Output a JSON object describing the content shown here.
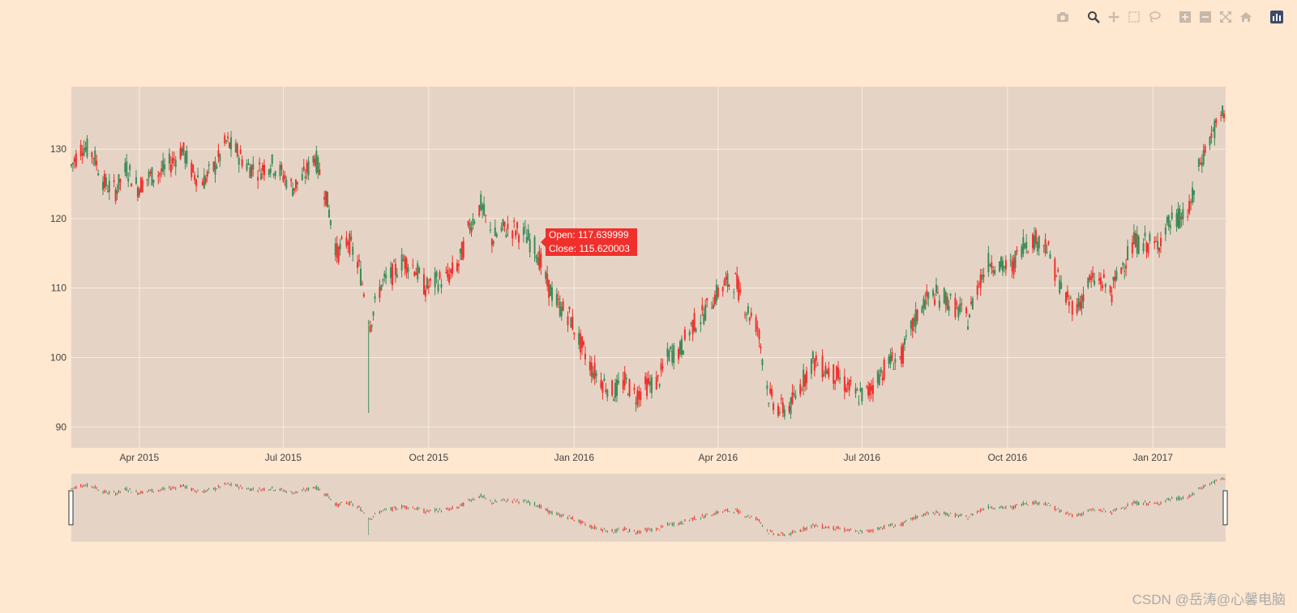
{
  "modebar": {
    "icons": [
      "camera-icon",
      "zoom-icon",
      "pan-icon",
      "box-select-icon",
      "lasso-icon",
      "zoom-in-icon",
      "zoom-out-icon",
      "autoscale-icon",
      "home-icon",
      "plotly-logo-icon"
    ]
  },
  "colors": {
    "background": "#ffe7d0",
    "plot_bg": "#e5d4c6",
    "increasing": "#3d8b57",
    "decreasing": "#f0302c",
    "grid": "#f5ecdf"
  },
  "hover": {
    "open_label": "Open: 117.639999",
    "close_label": "Close: 115.620003"
  },
  "watermark": "CSDN @岳涛@心馨电脑",
  "chart_data": {
    "type": "candlestick",
    "x_range": [
      "2015-02-17",
      "2017-02-16"
    ],
    "ylim": [
      87,
      139
    ],
    "yticks": [
      90,
      100,
      110,
      120,
      130
    ],
    "xticks": [
      {
        "label": "Apr 2015",
        "date": "2015-04-01"
      },
      {
        "label": "Jul 2015",
        "date": "2015-07-01"
      },
      {
        "label": "Oct 2015",
        "date": "2015-10-01"
      },
      {
        "label": "Jan 2016",
        "date": "2016-01-01"
      },
      {
        "label": "Apr 2016",
        "date": "2016-04-01"
      },
      {
        "label": "Jul 2016",
        "date": "2016-07-01"
      },
      {
        "label": "Oct 2016",
        "date": "2016-10-01"
      },
      {
        "label": "Jan 2017",
        "date": "2017-01-01"
      }
    ],
    "rangeslider": true,
    "price_path": [
      [
        "2015-02-17",
        127.6
      ],
      [
        "2015-02-24",
        130.5
      ],
      [
        "2015-03-03",
        129.2
      ],
      [
        "2015-03-10",
        125.0
      ],
      [
        "2015-03-17",
        124.0
      ],
      [
        "2015-03-24",
        127.3
      ],
      [
        "2015-03-31",
        124.5
      ],
      [
        "2015-04-07",
        126.0
      ],
      [
        "2015-04-14",
        126.5
      ],
      [
        "2015-04-21",
        128.0
      ],
      [
        "2015-04-28",
        130.0
      ],
      [
        "2015-05-05",
        126.5
      ],
      [
        "2015-05-12",
        125.5
      ],
      [
        "2015-05-19",
        127.5
      ],
      [
        "2015-05-26",
        131.0
      ],
      [
        "2015-06-02",
        129.5
      ],
      [
        "2015-06-09",
        127.5
      ],
      [
        "2015-06-16",
        127.0
      ],
      [
        "2015-06-23",
        128.0
      ],
      [
        "2015-06-30",
        126.5
      ],
      [
        "2015-07-07",
        124.5
      ],
      [
        "2015-07-14",
        126.0
      ],
      [
        "2015-07-21",
        129.0
      ],
      [
        "2015-07-28",
        123.5
      ],
      [
        "2015-08-04",
        115.0
      ],
      [
        "2015-08-11",
        117.0
      ],
      [
        "2015-08-18",
        113.0
      ],
      [
        "2015-08-25",
        105.0
      ],
      [
        "2015-09-01",
        110.5
      ],
      [
        "2015-09-08",
        112.0
      ],
      [
        "2015-09-15",
        114.0
      ],
      [
        "2015-09-22",
        113.0
      ],
      [
        "2015-09-29",
        110.0
      ],
      [
        "2015-10-06",
        111.0
      ],
      [
        "2015-10-13",
        111.5
      ],
      [
        "2015-10-20",
        113.5
      ],
      [
        "2015-10-27",
        119.0
      ],
      [
        "2015-11-03",
        122.0
      ],
      [
        "2015-11-10",
        117.0
      ],
      [
        "2015-11-17",
        118.5
      ],
      [
        "2015-11-24",
        118.5
      ],
      [
        "2015-12-01",
        117.6
      ],
      [
        "2015-12-08",
        115.6
      ],
      [
        "2015-12-15",
        110.5
      ],
      [
        "2015-12-22",
        107.5
      ],
      [
        "2015-12-29",
        106.0
      ],
      [
        "2016-01-05",
        102.0
      ],
      [
        "2016-01-12",
        98.5
      ],
      [
        "2016-01-19",
        96.5
      ],
      [
        "2016-01-26",
        95.0
      ],
      [
        "2016-02-02",
        96.5
      ],
      [
        "2016-02-09",
        94.5
      ],
      [
        "2016-02-16",
        96.0
      ],
      [
        "2016-02-23",
        96.5
      ],
      [
        "2016-03-01",
        100.5
      ],
      [
        "2016-03-08",
        101.0
      ],
      [
        "2016-03-15",
        104.5
      ],
      [
        "2016-03-22",
        106.0
      ],
      [
        "2016-03-29",
        108.5
      ],
      [
        "2016-04-05",
        110.5
      ],
      [
        "2016-04-12",
        111.0
      ],
      [
        "2016-04-19",
        107.0
      ],
      [
        "2016-04-26",
        104.5
      ],
      [
        "2016-05-03",
        94.5
      ],
      [
        "2016-05-10",
        92.5
      ],
      [
        "2016-05-17",
        93.0
      ],
      [
        "2016-05-24",
        96.5
      ],
      [
        "2016-05-31",
        99.5
      ],
      [
        "2016-06-07",
        98.5
      ],
      [
        "2016-06-14",
        97.5
      ],
      [
        "2016-06-21",
        96.0
      ],
      [
        "2016-06-28",
        94.5
      ],
      [
        "2016-07-05",
        95.0
      ],
      [
        "2016-07-12",
        97.5
      ],
      [
        "2016-07-19",
        99.5
      ],
      [
        "2016-07-26",
        100.0
      ],
      [
        "2016-08-02",
        104.5
      ],
      [
        "2016-08-09",
        108.0
      ],
      [
        "2016-08-16",
        109.0
      ],
      [
        "2016-08-23",
        108.5
      ],
      [
        "2016-08-30",
        107.0
      ],
      [
        "2016-09-06",
        105.5
      ],
      [
        "2016-09-13",
        111.0
      ],
      [
        "2016-09-20",
        114.0
      ],
      [
        "2016-09-27",
        113.0
      ],
      [
        "2016-10-04",
        113.0
      ],
      [
        "2016-10-11",
        116.5
      ],
      [
        "2016-10-18",
        117.0
      ],
      [
        "2016-10-25",
        116.5
      ],
      [
        "2016-11-01",
        112.0
      ],
      [
        "2016-11-08",
        108.0
      ],
      [
        "2016-11-15",
        107.5
      ],
      [
        "2016-11-22",
        111.0
      ],
      [
        "2016-11-29",
        111.0
      ],
      [
        "2016-12-06",
        109.5
      ],
      [
        "2016-12-13",
        113.5
      ],
      [
        "2016-12-20",
        116.5
      ],
      [
        "2016-12-27",
        116.5
      ],
      [
        "2017-01-03",
        116.0
      ],
      [
        "2017-01-10",
        119.0
      ],
      [
        "2017-01-17",
        120.0
      ],
      [
        "2017-01-24",
        121.0
      ],
      [
        "2017-01-31",
        128.0
      ],
      [
        "2017-02-07",
        132.0
      ],
      [
        "2017-02-16",
        135.5
      ]
    ]
  }
}
